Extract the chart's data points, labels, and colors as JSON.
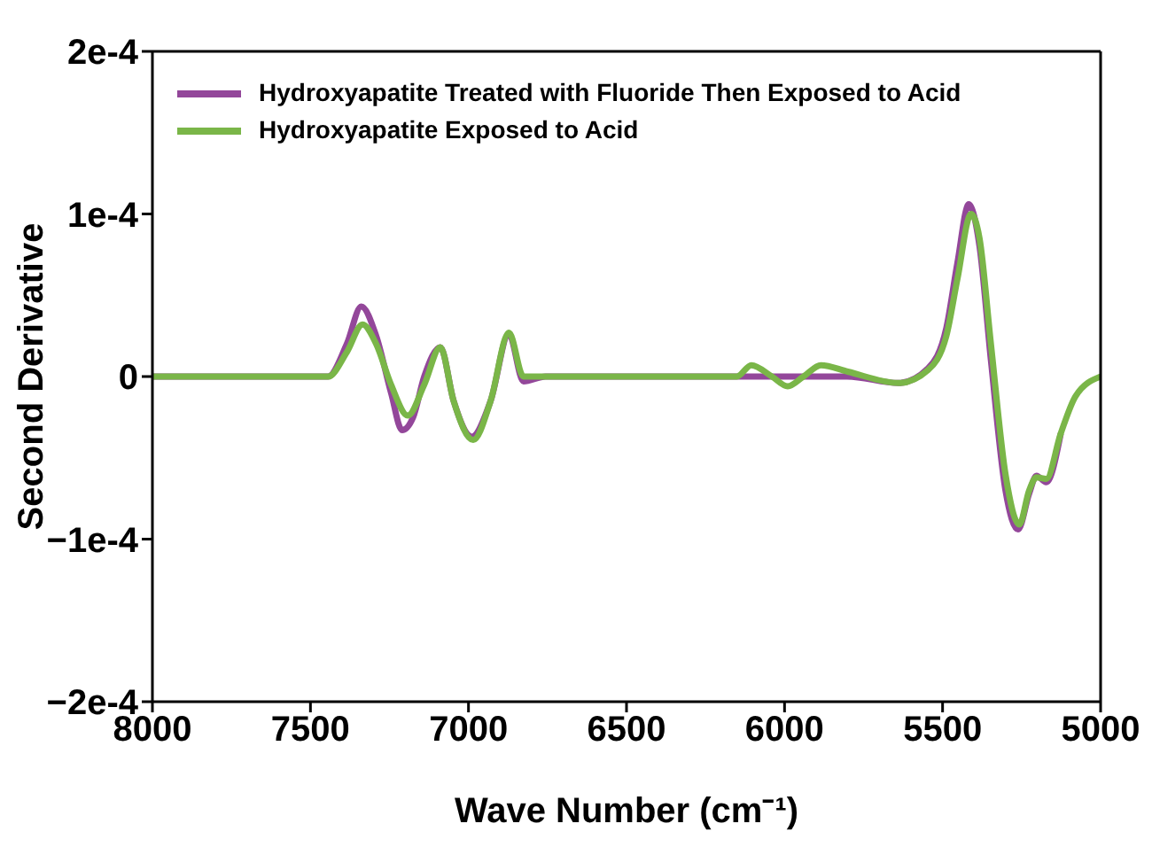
{
  "chart_data": {
    "type": "line",
    "xlabel": "Wave Number (cm⁻¹)",
    "ylabel": "Second Derivative",
    "xlim": [
      8000,
      5000
    ],
    "xticks": [
      8000,
      7500,
      7000,
      6500,
      6000,
      5500,
      5000
    ],
    "ylim": [
      -0.0002,
      0.0002
    ],
    "yticks": [
      {
        "value": -0.0002,
        "label": "−2e-4"
      },
      {
        "value": -0.0001,
        "label": "−1e-4"
      },
      0,
      {
        "value": 0.0001,
        "label": "1e-4"
      },
      {
        "value": 0.0002,
        "label": "2e-4"
      }
    ],
    "legend": "top left",
    "marker": "none",
    "line_style": "solid",
    "series": [
      {
        "name": "Hydroxyapatite Treated with Fluoride Then Exposed to Acid",
        "color": "#93479a",
        "x": [
          8000,
          7502,
          7444,
          7385,
          7339,
          7292,
          7245,
          7210,
          7175,
          7140,
          7089,
          7047,
          6989,
          6930,
          6872,
          6826,
          6756,
          6500,
          6151,
          5918,
          5802,
          5639,
          5546,
          5488,
          5453,
          5417,
          5383,
          5347,
          5301,
          5261,
          5226,
          5203,
          5172,
          5126
        ],
        "values": [
          0,
          0,
          0,
          2e-05,
          4.3e-05,
          2.5e-05,
          -1e-05,
          -3.3e-05,
          -2.5e-05,
          0,
          1.8e-05,
          -1.5e-05,
          -3.7e-05,
          -1.5e-05,
          2.6e-05,
          -3e-06,
          0,
          0,
          0,
          0,
          0,
          -4e-06,
          5e-06,
          3e-05,
          7e-05,
          0.000106,
          8e-05,
          1e-05,
          -7e-05,
          -9.4e-05,
          -7.2e-05,
          -6.1e-05,
          -6.5e-05,
          -3.5e-05
        ]
      },
      {
        "name": "Hydroxyapatite Exposed to Acid",
        "color": "#7ab648",
        "x": [
          8000,
          7502,
          7444,
          7385,
          7335,
          7292,
          7245,
          7192,
          7140,
          7089,
          7047,
          6985,
          6930,
          6872,
          6826,
          6756,
          6500,
          6151,
          6105,
          6040,
          5990,
          5940,
          5885,
          5800,
          5639,
          5546,
          5488,
          5453,
          5410,
          5383,
          5347,
          5301,
          5257,
          5226,
          5203,
          5172,
          5126,
          5079,
          5000
        ],
        "values": [
          0,
          0,
          0,
          1.5e-05,
          3.2e-05,
          2e-05,
          -5e-06,
          -2.4e-05,
          -5e-06,
          1.8e-05,
          -1.5e-05,
          -3.9e-05,
          -1.5e-05,
          2.7e-05,
          0,
          0,
          0,
          0,
          7e-06,
          0,
          -6e-06,
          0,
          7e-06,
          3e-06,
          -4e-06,
          4e-06,
          2.5e-05,
          6e-05,
          0.0001,
          8.5e-05,
          2e-05,
          -6e-05,
          -9.1e-05,
          -7e-05,
          -6.2e-05,
          -6.3e-05,
          -3.5e-05,
          -1.2e-05,
          0
        ]
      }
    ]
  }
}
